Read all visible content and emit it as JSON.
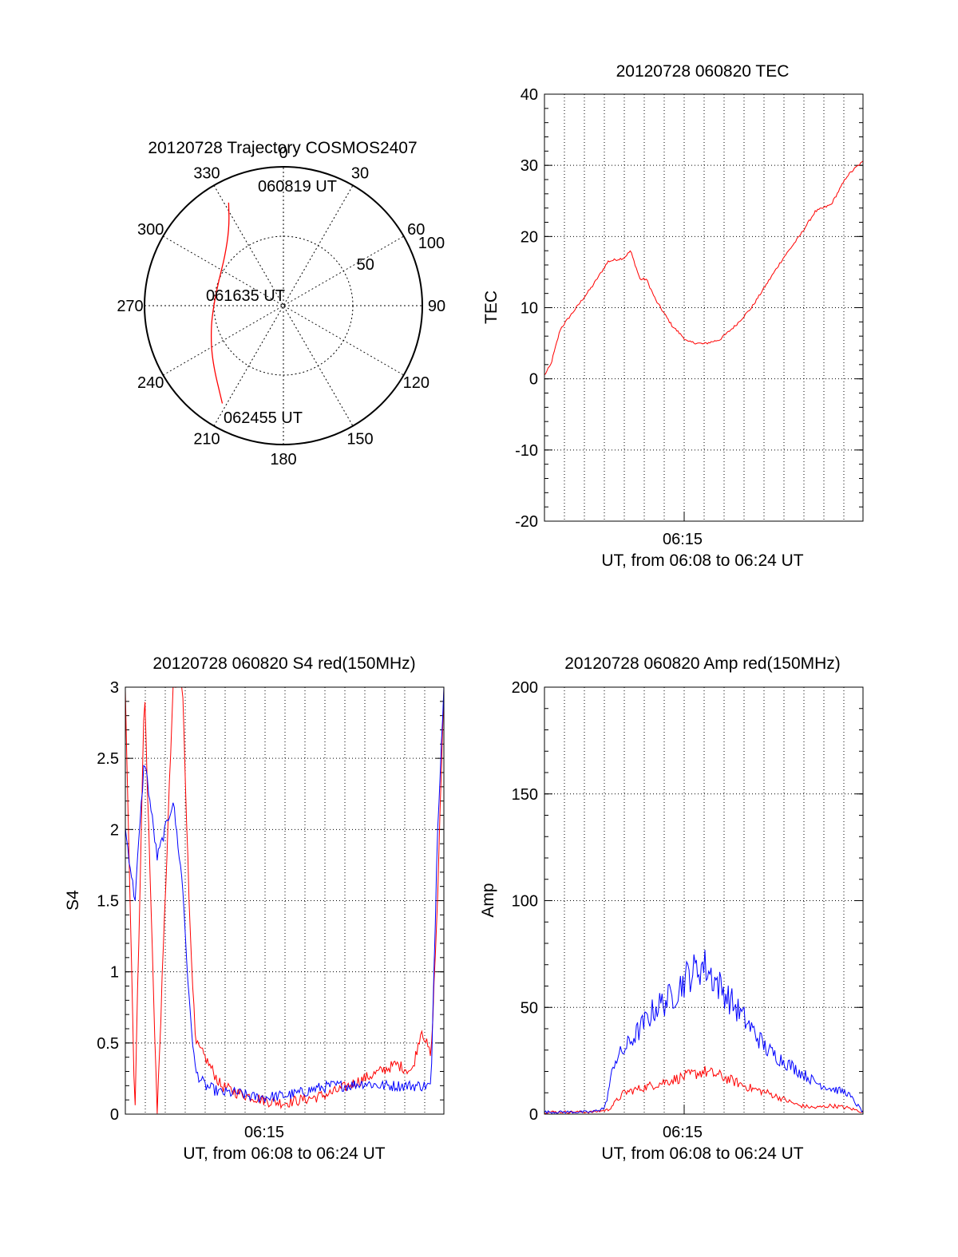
{
  "chart_data": [
    {
      "id": "polar",
      "type": "scatter",
      "title": "20120728 Trajectory COSMOS2407",
      "coordinate_system": "polar (azimuth clockwise from north, zenith distance radial)",
      "azimuth_labels": [
        "0",
        "30",
        "60",
        "90",
        "120",
        "150",
        "180",
        "210",
        "240",
        "270",
        "300",
        "330"
      ],
      "radial_labels": [
        "50",
        "100"
      ],
      "radial_max": 100,
      "annotations": [
        "060819 UT",
        "061635 UT",
        "062455 UT"
      ],
      "series": [
        {
          "color": "#ff0000",
          "points": [
            {
              "az": 332,
              "r": 84
            },
            {
              "az": 325,
              "r": 68
            },
            {
              "az": 310,
              "r": 55
            },
            {
              "az": 292,
              "r": 50
            },
            {
              "az": 272,
              "r": 50
            },
            {
              "az": 252,
              "r": 55
            },
            {
              "az": 232,
              "r": 65
            },
            {
              "az": 212,
              "r": 83
            }
          ]
        }
      ]
    },
    {
      "id": "tec",
      "type": "line",
      "title": "20120728 060820 TEC",
      "ylabel": "TEC",
      "xlabel": "UT, from 06:08 to 06:24 UT",
      "xtick_label": "06:15",
      "ylim": [
        -20,
        40
      ],
      "yticks": [
        "-20",
        "-10",
        "0",
        "10",
        "20",
        "30",
        "40"
      ],
      "grid": true,
      "series": [
        {
          "color": "#ff0000",
          "x": [
            0,
            0.02,
            0.05,
            0.1,
            0.15,
            0.2,
            0.25,
            0.27,
            0.3,
            0.32,
            0.35,
            0.4,
            0.45,
            0.5,
            0.55,
            0.6,
            0.65,
            0.7,
            0.75,
            0.8,
            0.85,
            0.9,
            0.95,
            0.98,
            1.0
          ],
          "values": [
            0.5,
            2,
            7,
            10,
            13,
            16.5,
            17,
            18,
            14,
            14,
            11,
            7.5,
            5.2,
            4.9,
            5.5,
            7.5,
            10,
            13.5,
            17,
            20,
            23.5,
            24.5,
            28.5,
            29.8,
            30.5
          ]
        }
      ]
    },
    {
      "id": "s4",
      "type": "line",
      "title": "20120728 060820 S4 red(150MHz)",
      "ylabel": "S4",
      "xlabel": "UT, from 06:08 to 06:24 UT",
      "xtick_label": "06:15",
      "ylim": [
        0,
        3
      ],
      "yticks": [
        "0",
        "0.5",
        "1",
        "1.5",
        "2",
        "2.5",
        "3"
      ],
      "grid": true,
      "series": [
        {
          "color": "#ff0000",
          "x": [
            0,
            0.03,
            0.06,
            0.1,
            0.15,
            0.18,
            0.2,
            0.22,
            0.25,
            0.3,
            0.35,
            0.4,
            0.45,
            0.5,
            0.55,
            0.6,
            0.65,
            0.7,
            0.75,
            0.8,
            0.85,
            0.9,
            0.93,
            0.96,
            0.98,
            1.0
          ],
          "values": [
            3,
            0,
            3,
            0,
            3,
            3,
            1.5,
            0.5,
            0.4,
            0.2,
            0.15,
            0.12,
            0.09,
            0.08,
            0.1,
            0.12,
            0.15,
            0.2,
            0.25,
            0.3,
            0.35,
            0.3,
            0.6,
            0.4,
            1.5,
            3
          ]
        },
        {
          "color": "#0000ff",
          "x": [
            0,
            0.03,
            0.06,
            0.1,
            0.15,
            0.18,
            0.2,
            0.22,
            0.25,
            0.3,
            0.35,
            0.4,
            0.45,
            0.5,
            0.55,
            0.6,
            0.65,
            0.7,
            0.75,
            0.8,
            0.85,
            0.9,
            0.93,
            0.96,
            0.98,
            1.0
          ],
          "values": [
            2,
            1.5,
            2.5,
            1.8,
            2.2,
            1.6,
            0.8,
            0.3,
            0.2,
            0.15,
            0.15,
            0.12,
            0.12,
            0.13,
            0.15,
            0.18,
            0.2,
            0.2,
            0.22,
            0.2,
            0.2,
            0.2,
            0.2,
            0.2,
            2,
            3
          ]
        }
      ]
    },
    {
      "id": "amp",
      "type": "line",
      "title": "20120728 060820 Amp red(150MHz)",
      "ylabel": "Amp",
      "xlabel": "UT, from 06:08 to 06:24 UT",
      "xtick_label": "06:15",
      "ylim": [
        0,
        200
      ],
      "yticks": [
        "0",
        "50",
        "100",
        "150",
        "200"
      ],
      "grid": true,
      "series": [
        {
          "color": "#ff0000",
          "x": [
            0,
            0.15,
            0.2,
            0.25,
            0.3,
            0.35,
            0.4,
            0.45,
            0.5,
            0.55,
            0.6,
            0.65,
            0.7,
            0.75,
            0.8,
            0.85,
            0.9,
            0.95,
            1.0
          ],
          "values": [
            1,
            1,
            2,
            10,
            12,
            14,
            16,
            18,
            20,
            18,
            15,
            12,
            10,
            7,
            4,
            3,
            4,
            3,
            1
          ]
        },
        {
          "color": "#0000ff",
          "x": [
            0,
            0.15,
            0.19,
            0.22,
            0.25,
            0.3,
            0.35,
            0.4,
            0.45,
            0.5,
            0.55,
            0.6,
            0.65,
            0.7,
            0.75,
            0.8,
            0.85,
            0.9,
            0.95,
            1.0
          ],
          "values": [
            1,
            1,
            3,
            25,
            30,
            40,
            50,
            55,
            65,
            70,
            60,
            50,
            40,
            30,
            25,
            20,
            15,
            12,
            10,
            1
          ]
        }
      ]
    }
  ]
}
